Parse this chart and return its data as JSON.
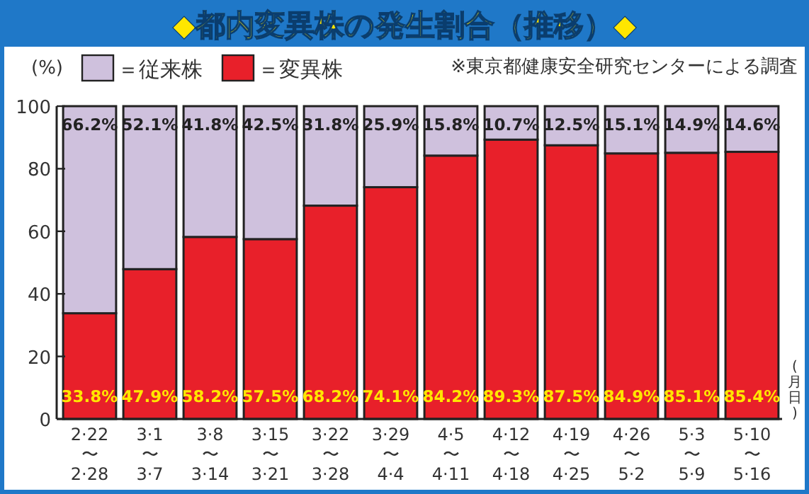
{
  "chart_data": {
    "type": "bar",
    "title": "◆都内変異株の発生割合（推移）◆",
    "ylabel": "(%)",
    "xlabel": "(月日)",
    "annotations": [
      "※東京都健康安全研究センターによる調査"
    ],
    "categories": [
      "2·22\n〜\n2·28",
      "3·1\n〜\n3·7",
      "3·8\n〜\n3·14",
      "3·15\n〜\n3·21",
      "3·22\n〜\n3·28",
      "3·29\n〜\n4·4",
      "4·5\n〜\n4·11",
      "4·12\n〜\n4·18",
      "4·19\n〜\n4·25",
      "4·26\n〜\n5·2",
      "5·3\n〜\n5·9",
      "5·10\n〜\n5·16"
    ],
    "stacked": true,
    "legend": "top left",
    "grid": false,
    "ylim": [
      0,
      100
    ],
    "yticks": [
      0,
      20,
      40,
      60,
      80,
      100
    ],
    "series": [
      {
        "name": "＝変異株",
        "color": "#e8202a",
        "values": [
          33.8,
          47.9,
          58.2,
          57.5,
          68.2,
          74.1,
          84.2,
          89.3,
          87.5,
          84.9,
          85.1,
          85.4
        ],
        "value_labels": [
          "33.8%",
          "47.9%",
          "58.2%",
          "57.5%",
          "68.2%",
          "74.1%",
          "84.2%",
          "89.3%",
          "87.5%",
          "84.9%",
          "85.1%",
          "85.4%"
        ]
      },
      {
        "name": "＝従来株",
        "color": "#cfc1dd",
        "values": [
          66.2,
          52.1,
          41.8,
          42.5,
          31.8,
          25.9,
          15.8,
          10.7,
          12.5,
          15.1,
          14.9,
          14.6
        ],
        "value_labels": [
          "66.2%",
          "52.1%",
          "41.8%",
          "42.5%",
          "31.8%",
          "25.9%",
          "15.8%",
          "10.7%",
          "12.5%",
          "15.1%",
          "14.9%",
          "14.6%"
        ]
      }
    ]
  }
}
